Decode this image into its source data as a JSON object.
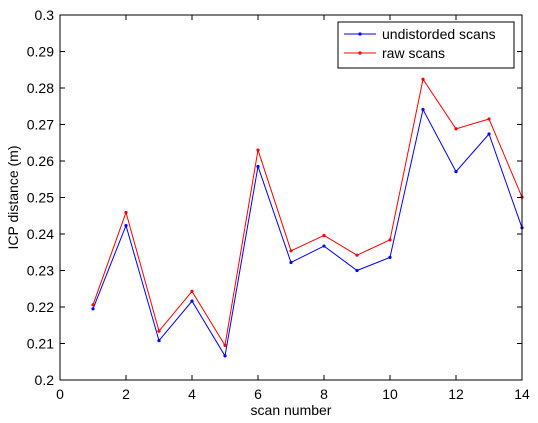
{
  "chart_data": {
    "type": "line",
    "xlabel": "scan number",
    "ylabel": "ICP distance (m)",
    "xlim": [
      0,
      14
    ],
    "ylim": [
      0.2,
      0.3
    ],
    "x_ticks": [
      "0",
      "2",
      "4",
      "6",
      "8",
      "10",
      "12",
      "14"
    ],
    "y_ticks": [
      "0.2",
      "0.21",
      "0.22",
      "0.23",
      "0.24",
      "0.25",
      "0.26",
      "0.27",
      "0.28",
      "0.29",
      "0.3"
    ],
    "grid": false,
    "legend_position": "top-right",
    "x": [
      1,
      2,
      3,
      4,
      5,
      6,
      7,
      8,
      9,
      10,
      11,
      12,
      13,
      14
    ],
    "series": [
      {
        "name": "undistorded scans",
        "color": "#0000ff",
        "values": [
          0.2195,
          0.2423,
          0.2108,
          0.2216,
          0.2066,
          0.2585,
          0.2322,
          0.2367,
          0.23,
          0.2336,
          0.2741,
          0.2571,
          0.2674,
          0.2417
        ]
      },
      {
        "name": "raw scans",
        "color": "#ff0000",
        "values": [
          0.2206,
          0.2459,
          0.2134,
          0.2243,
          0.2095,
          0.263,
          0.2354,
          0.2396,
          0.2342,
          0.2384,
          0.2824,
          0.2688,
          0.2715,
          0.2501
        ]
      }
    ]
  }
}
